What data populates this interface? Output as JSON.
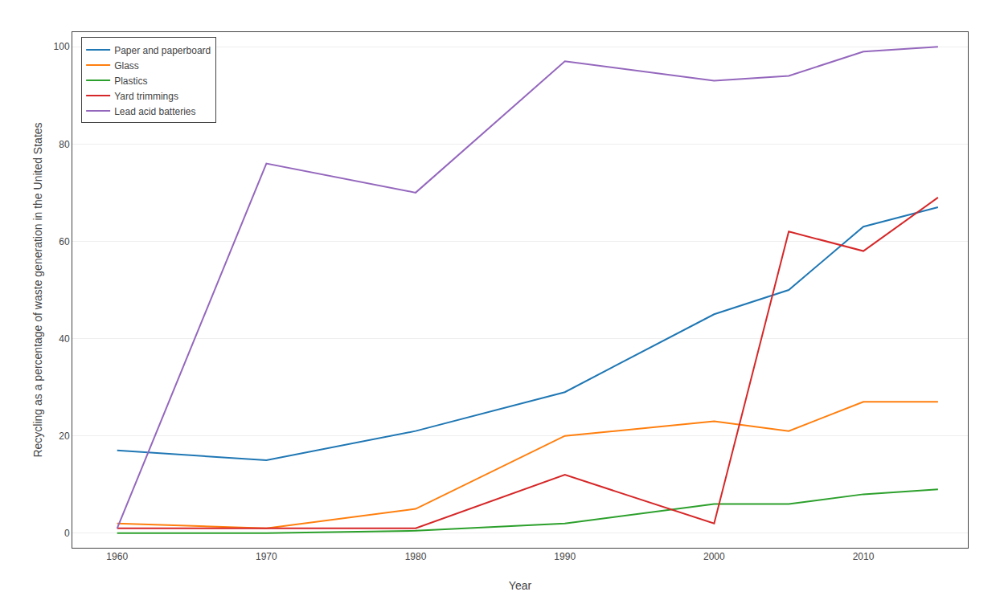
{
  "chart_data": {
    "type": "line",
    "x": [
      1960,
      1970,
      1980,
      1990,
      2000,
      2005,
      2010,
      2015
    ],
    "series": [
      {
        "name": "Paper and paperboard",
        "color": "#1f77b4",
        "values": [
          17,
          15,
          21,
          29,
          45,
          50,
          63,
          67
        ]
      },
      {
        "name": "Glass",
        "color": "#ff7f0e",
        "values": [
          2,
          1,
          5,
          20,
          23,
          21,
          27,
          27
        ]
      },
      {
        "name": "Plastics",
        "color": "#2ca02c",
        "values": [
          0,
          0,
          0.5,
          2,
          6,
          6,
          8,
          9
        ]
      },
      {
        "name": "Yard trimmings",
        "color": "#d62728",
        "values": [
          1,
          1,
          1,
          12,
          2,
          62,
          58,
          69
        ]
      },
      {
        "name": "Lead acid batteries",
        "color": "#9467bd",
        "values": [
          1,
          76,
          70,
          97,
          93,
          94,
          99,
          100
        ]
      }
    ],
    "xlabel": "Year",
    "ylabel": "Recycling as a percentage of waste generation in the United States",
    "xlim": [
      1957,
      2017
    ],
    "ylim": [
      -3,
      103
    ],
    "xticks": [
      1960,
      1970,
      1980,
      1990,
      2000,
      2010
    ],
    "yticks": [
      0,
      20,
      40,
      60,
      80,
      100
    ],
    "grid": "y",
    "legend": "upper left"
  }
}
